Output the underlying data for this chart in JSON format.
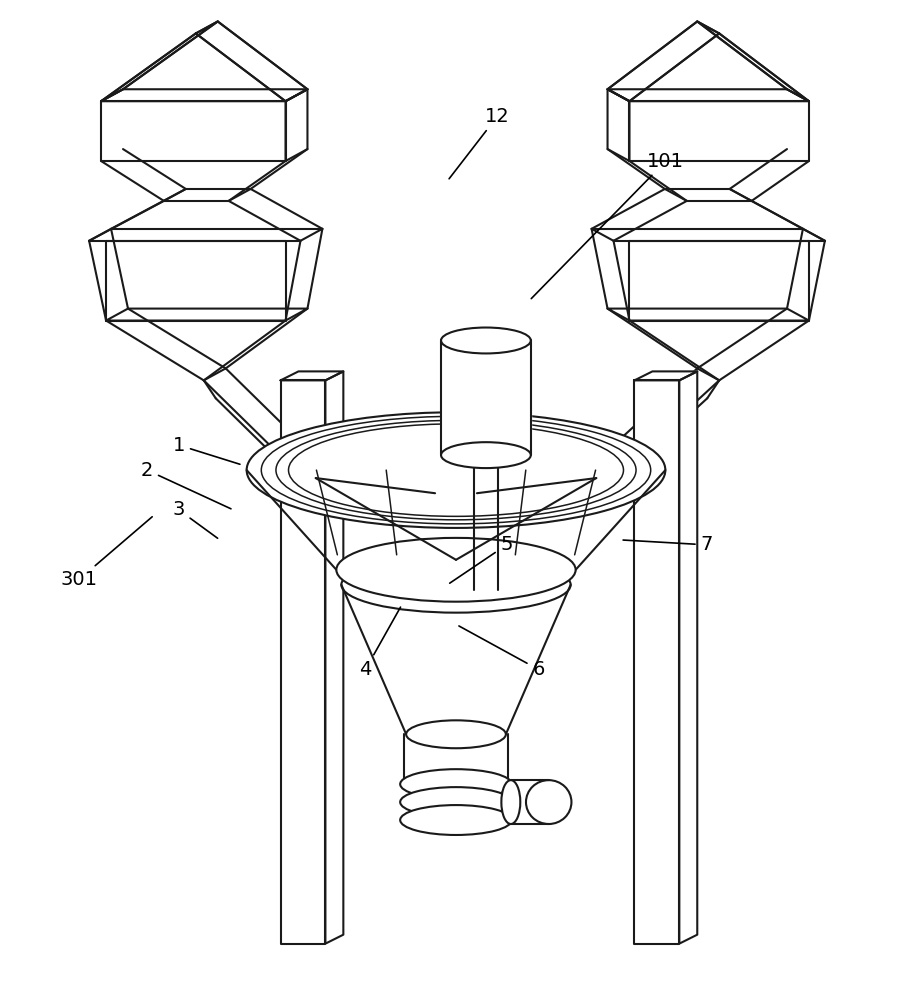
{
  "bg_color": "#ffffff",
  "line_color": "#1a1a1a",
  "lw": 1.5,
  "lw_thin": 1.1,
  "figsize": [
    9.13,
    10.0
  ],
  "dpi": 100,
  "labels": {
    "1": [
      0.195,
      0.555,
      0.265,
      0.535
    ],
    "2": [
      0.16,
      0.53,
      0.255,
      0.49
    ],
    "3": [
      0.195,
      0.49,
      0.24,
      0.46
    ],
    "301": [
      0.085,
      0.42,
      0.168,
      0.485
    ],
    "4": [
      0.4,
      0.33,
      0.44,
      0.395
    ],
    "5": [
      0.555,
      0.455,
      0.49,
      0.415
    ],
    "6": [
      0.59,
      0.33,
      0.5,
      0.375
    ],
    "7": [
      0.775,
      0.455,
      0.68,
      0.46
    ],
    "101": [
      0.73,
      0.84,
      0.58,
      0.7
    ],
    "12": [
      0.545,
      0.885,
      0.49,
      0.82
    ]
  }
}
